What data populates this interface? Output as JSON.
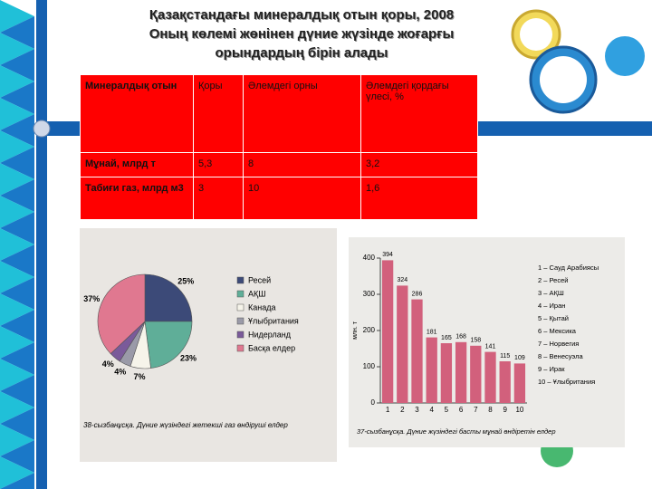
{
  "title": [
    "Қазақстандағы минералдық отын қоры, 2008",
    "Оның көлемі жөнінен дүние жүзінде жоғарғы",
    "орындардың бірін алады"
  ],
  "table": {
    "header": [
      "Минералдық отын",
      "Қоры",
      "Әлемдегі орны",
      "Әлемдегі қордағы үлесі, %"
    ],
    "rows": [
      [
        "Мұнай, млрд т",
        "5,3",
        "8",
        "3,2"
      ],
      [
        "Табиғи газ, млрд м3",
        "3",
        "10",
        "1,6"
      ]
    ]
  },
  "chart_data": [
    {
      "type": "pie",
      "caption": "38-сызбанұсқа. Дүние жүзіндегі жетекші газ өндіруші елдер",
      "categories": [
        "Ресей",
        "АҚШ",
        "Канада",
        "Ұлыбритания",
        "Нидерланд",
        "Басқа елдер"
      ],
      "values": [
        25,
        23,
        7,
        4,
        4,
        37
      ],
      "value_labels": [
        "25%",
        "23%",
        "7%",
        "4%",
        "4%",
        "37%"
      ],
      "colors": [
        "#3c4a78",
        "#5fae98",
        "#f6f4ea",
        "#9a9aa8",
        "#7a5a9a",
        "#e07890"
      ]
    },
    {
      "type": "bar",
      "caption": "37-сызбанұсқа. Дүние жүзіндегі басты мұнай өндіретін елдер",
      "y_label": "млн. т",
      "categories": [
        "1",
        "2",
        "3",
        "4",
        "5",
        "6",
        "7",
        "8",
        "9",
        "10"
      ],
      "values": [
        394,
        324,
        286,
        181,
        165,
        168,
        158,
        141,
        115,
        109
      ],
      "color": "#d2607c",
      "ylim": [
        0,
        400
      ],
      "yticks": [
        0,
        100,
        200,
        300,
        400
      ],
      "legend": [
        "1 – Сауд Арабиясы",
        "2 – Ресей",
        "3 – АҚШ",
        "4 – Иран",
        "5 – Қытай",
        "6 – Мексика",
        "7 – Норвегия",
        "8 – Венесуэла",
        "9 – Ирак",
        "10 – Ұлыбритания"
      ]
    }
  ]
}
